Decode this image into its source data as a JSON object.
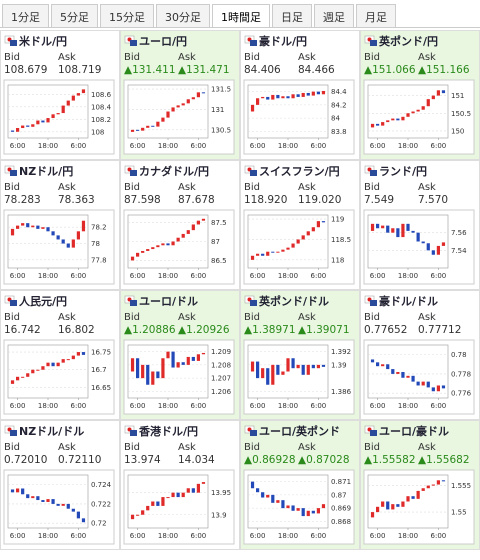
{
  "tabs": [
    "1分足",
    "5分足",
    "15分足",
    "30分足",
    "1時間足",
    "日足",
    "週足",
    "月足"
  ],
  "active_tab": 4,
  "bid_label": "Bid",
  "ask_label": "Ask",
  "time_labels": [
    "6:00",
    "18:00",
    "6:00"
  ],
  "pairs": [
    {
      "name": "米ドル/円",
      "bid": "108.679",
      "ask": "108.719",
      "highlight": false,
      "ylim": [
        107.9,
        108.75
      ],
      "yticks": [
        108,
        108.2,
        108.4,
        108.6
      ],
      "values": [
        108.02,
        108.0,
        108.06,
        108.1,
        108.08,
        108.12,
        108.18,
        108.15,
        108.22,
        108.28,
        108.3,
        108.42,
        108.5,
        108.58,
        108.62,
        108.68
      ]
    },
    {
      "name": "ユーロ/円",
      "bid": "▲131.411",
      "ask": "▲131.471",
      "highlight": true,
      "ylim": [
        130.3,
        131.6
      ],
      "yticks": [
        130.5,
        131,
        131.5
      ],
      "values": [
        130.45,
        130.5,
        130.48,
        130.55,
        130.6,
        130.58,
        130.7,
        130.8,
        130.95,
        131.05,
        131.1,
        131.15,
        131.25,
        131.3,
        131.42,
        131.41
      ]
    },
    {
      "name": "豪ドル/円",
      "bid": "84.406",
      "ask": "84.466",
      "highlight": false,
      "ylim": [
        83.7,
        84.5
      ],
      "yticks": [
        83.8,
        84,
        84.2,
        84.4
      ],
      "values": [
        84.1,
        84.2,
        84.3,
        84.32,
        84.28,
        84.35,
        84.3,
        84.33,
        84.3,
        84.36,
        84.32,
        84.38,
        84.34,
        84.4,
        84.36,
        84.41
      ]
    },
    {
      "name": "英ポンド/円",
      "bid": "▲151.066",
      "ask": "▲151.166",
      "highlight": true,
      "ylim": [
        149.8,
        151.3
      ],
      "yticks": [
        150,
        150.5,
        151
      ],
      "values": [
        150.1,
        150.2,
        150.15,
        150.25,
        150.3,
        150.35,
        150.3,
        150.4,
        150.5,
        150.55,
        150.6,
        150.7,
        150.9,
        151.0,
        151.15,
        151.07
      ]
    },
    {
      "name": "NZドル/円",
      "bid": "78.283",
      "ask": "78.363",
      "highlight": false,
      "ylim": [
        77.7,
        78.35
      ],
      "yticks": [
        77.8,
        78,
        78.2
      ],
      "values": [
        78.1,
        78.18,
        78.22,
        78.25,
        78.2,
        78.22,
        78.18,
        78.2,
        78.15,
        78.1,
        78.05,
        78.0,
        77.95,
        78.05,
        78.15,
        78.28
      ]
    },
    {
      "name": "カナダドル/円",
      "bid": "87.598",
      "ask": "87.678",
      "highlight": false,
      "ylim": [
        86.3,
        87.7
      ],
      "yticks": [
        86.5,
        87,
        87.5
      ],
      "values": [
        86.5,
        86.6,
        86.7,
        86.75,
        86.8,
        86.85,
        86.9,
        86.95,
        86.9,
        87.0,
        87.1,
        87.2,
        87.3,
        87.45,
        87.55,
        87.6
      ]
    },
    {
      "name": "スイスフラン/円",
      "bid": "118.920",
      "ask": "119.020",
      "highlight": false,
      "ylim": [
        117.8,
        119.1
      ],
      "yticks": [
        118,
        118.5,
        119
      ],
      "values": [
        118.0,
        118.1,
        118.15,
        118.1,
        118.2,
        118.18,
        118.2,
        118.25,
        118.3,
        118.4,
        118.5,
        118.6,
        118.7,
        118.8,
        118.95,
        118.92
      ]
    },
    {
      "name": "ランド/円",
      "bid": "7.549",
      "ask": "7.570",
      "highlight": false,
      "ylim": [
        7.52,
        7.58
      ],
      "yticks": [
        7.54,
        7.56
      ],
      "values": [
        7.562,
        7.57,
        7.565,
        7.568,
        7.56,
        7.565,
        7.555,
        7.57,
        7.562,
        7.56,
        7.55,
        7.548,
        7.54,
        7.535,
        7.545,
        7.549
      ]
    },
    {
      "name": "人民元/円",
      "bid": "16.742",
      "ask": "16.802",
      "highlight": false,
      "ylim": [
        16.62,
        16.77
      ],
      "yticks": [
        16.65,
        16.7,
        16.75
      ],
      "values": [
        16.66,
        16.67,
        16.68,
        16.68,
        16.69,
        16.7,
        16.7,
        16.71,
        16.72,
        16.71,
        16.72,
        16.73,
        16.73,
        16.74,
        16.75,
        16.742
      ]
    },
    {
      "name": "ユーロ/ドル",
      "bid": "▲1.20886",
      "ask": "▲1.20926",
      "highlight": true,
      "ylim": [
        1.2055,
        1.2095
      ],
      "yticks": [
        1.206,
        1.207,
        1.208,
        1.209
      ],
      "values": [
        1.2075,
        1.2085,
        1.207,
        1.208,
        1.2065,
        1.2075,
        1.207,
        1.2085,
        1.209,
        1.2078,
        1.2082,
        1.208,
        1.2086,
        1.2083,
        1.2088,
        1.2089
      ]
    },
    {
      "name": "英ポンド/ドル",
      "bid": "▲1.38971",
      "ask": "▲1.39071",
      "highlight": true,
      "ylim": [
        1.385,
        1.393
      ],
      "yticks": [
        1.386,
        1.39,
        1.392
      ],
      "values": [
        1.389,
        1.3905,
        1.388,
        1.3895,
        1.387,
        1.39,
        1.3885,
        1.389,
        1.391,
        1.3895,
        1.39,
        1.3885,
        1.39,
        1.3895,
        1.39,
        1.3897
      ]
    },
    {
      "name": "豪ドル/ドル",
      "bid": "0.77652",
      "ask": "0.77712",
      "highlight": false,
      "ylim": [
        0.7755,
        0.781
      ],
      "yticks": [
        0.776,
        0.778,
        0.78
      ],
      "values": [
        0.7795,
        0.7792,
        0.7788,
        0.779,
        0.7785,
        0.778,
        0.7782,
        0.7776,
        0.7778,
        0.7772,
        0.7768,
        0.7772,
        0.7766,
        0.7762,
        0.7768,
        0.7765
      ]
    },
    {
      "name": "NZドル/ドル",
      "bid": "0.72010",
      "ask": "0.72110",
      "highlight": false,
      "ylim": [
        0.7195,
        0.725
      ],
      "yticks": [
        0.72,
        0.722,
        0.724
      ],
      "values": [
        0.7235,
        0.7232,
        0.7236,
        0.723,
        0.7226,
        0.7228,
        0.7224,
        0.7222,
        0.7225,
        0.722,
        0.7218,
        0.722,
        0.7215,
        0.7212,
        0.7205,
        0.7201
      ]
    },
    {
      "name": "香港ドル/円",
      "bid": "13.974",
      "ask": "14.034",
      "highlight": false,
      "ylim": [
        13.87,
        13.99
      ],
      "yticks": [
        13.9,
        13.95
      ],
      "values": [
        13.89,
        13.9,
        13.9,
        13.91,
        13.92,
        13.93,
        13.92,
        13.94,
        13.94,
        13.95,
        13.94,
        13.95,
        13.96,
        13.95,
        13.97,
        13.974
      ]
    },
    {
      "name": "ユーロ/英ポンド",
      "bid": "▲0.86928",
      "ask": "▲0.87028",
      "highlight": true,
      "ylim": [
        0.8675,
        0.8715
      ],
      "yticks": [
        0.868,
        0.869,
        0.87,
        0.871
      ],
      "values": [
        0.871,
        0.8705,
        0.8702,
        0.8698,
        0.87,
        0.8694,
        0.8696,
        0.869,
        0.8692,
        0.8688,
        0.869,
        0.8684,
        0.8688,
        0.8686,
        0.869,
        0.8693
      ]
    },
    {
      "name": "ユーロ/豪ドル",
      "bid": "▲1.55582",
      "ask": "▲1.55682",
      "highlight": true,
      "ylim": [
        1.547,
        1.557
      ],
      "yticks": [
        1.55,
        1.555
      ],
      "values": [
        1.549,
        1.55,
        1.551,
        1.552,
        1.5505,
        1.5515,
        1.551,
        1.552,
        1.553,
        1.5525,
        1.554,
        1.5545,
        1.555,
        1.5552,
        1.556,
        1.5558
      ]
    }
  ]
}
